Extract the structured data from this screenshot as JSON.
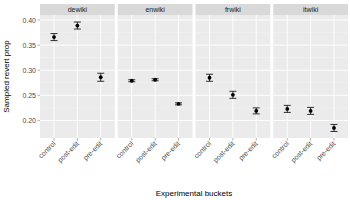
{
  "chart_data": {
    "type": "point",
    "x_label": "Experimental buckets",
    "y_label": "Sampled revert prop",
    "categories": [
      "control",
      "post-edit",
      "pre-edit"
    ],
    "ylim": [
      0.165,
      0.41
    ],
    "yticks": [
      {
        "value": 0.2,
        "label": "0.20"
      },
      0.25,
      {
        "value": 0.3,
        "label": "0.30"
      },
      0.35,
      {
        "value": 0.4,
        "label": "0.40"
      }
    ],
    "grid": true,
    "color": "#000000",
    "panels": [
      {
        "title": "dewiki",
        "values": [
          0.366,
          0.389,
          0.286
        ],
        "errors": [
          0.007,
          0.007,
          0.008
        ]
      },
      {
        "title": "enwiki",
        "values": [
          0.279,
          0.281,
          0.233
        ],
        "errors": [
          0.002,
          0.002,
          0.002
        ]
      },
      {
        "title": "frwiki",
        "values": [
          0.285,
          0.251,
          0.219
        ],
        "errors": [
          0.007,
          0.007,
          0.006
        ]
      },
      {
        "title": "itwiki",
        "values": [
          0.223,
          0.219,
          0.185
        ],
        "errors": [
          0.007,
          0.007,
          0.007
        ]
      }
    ]
  }
}
